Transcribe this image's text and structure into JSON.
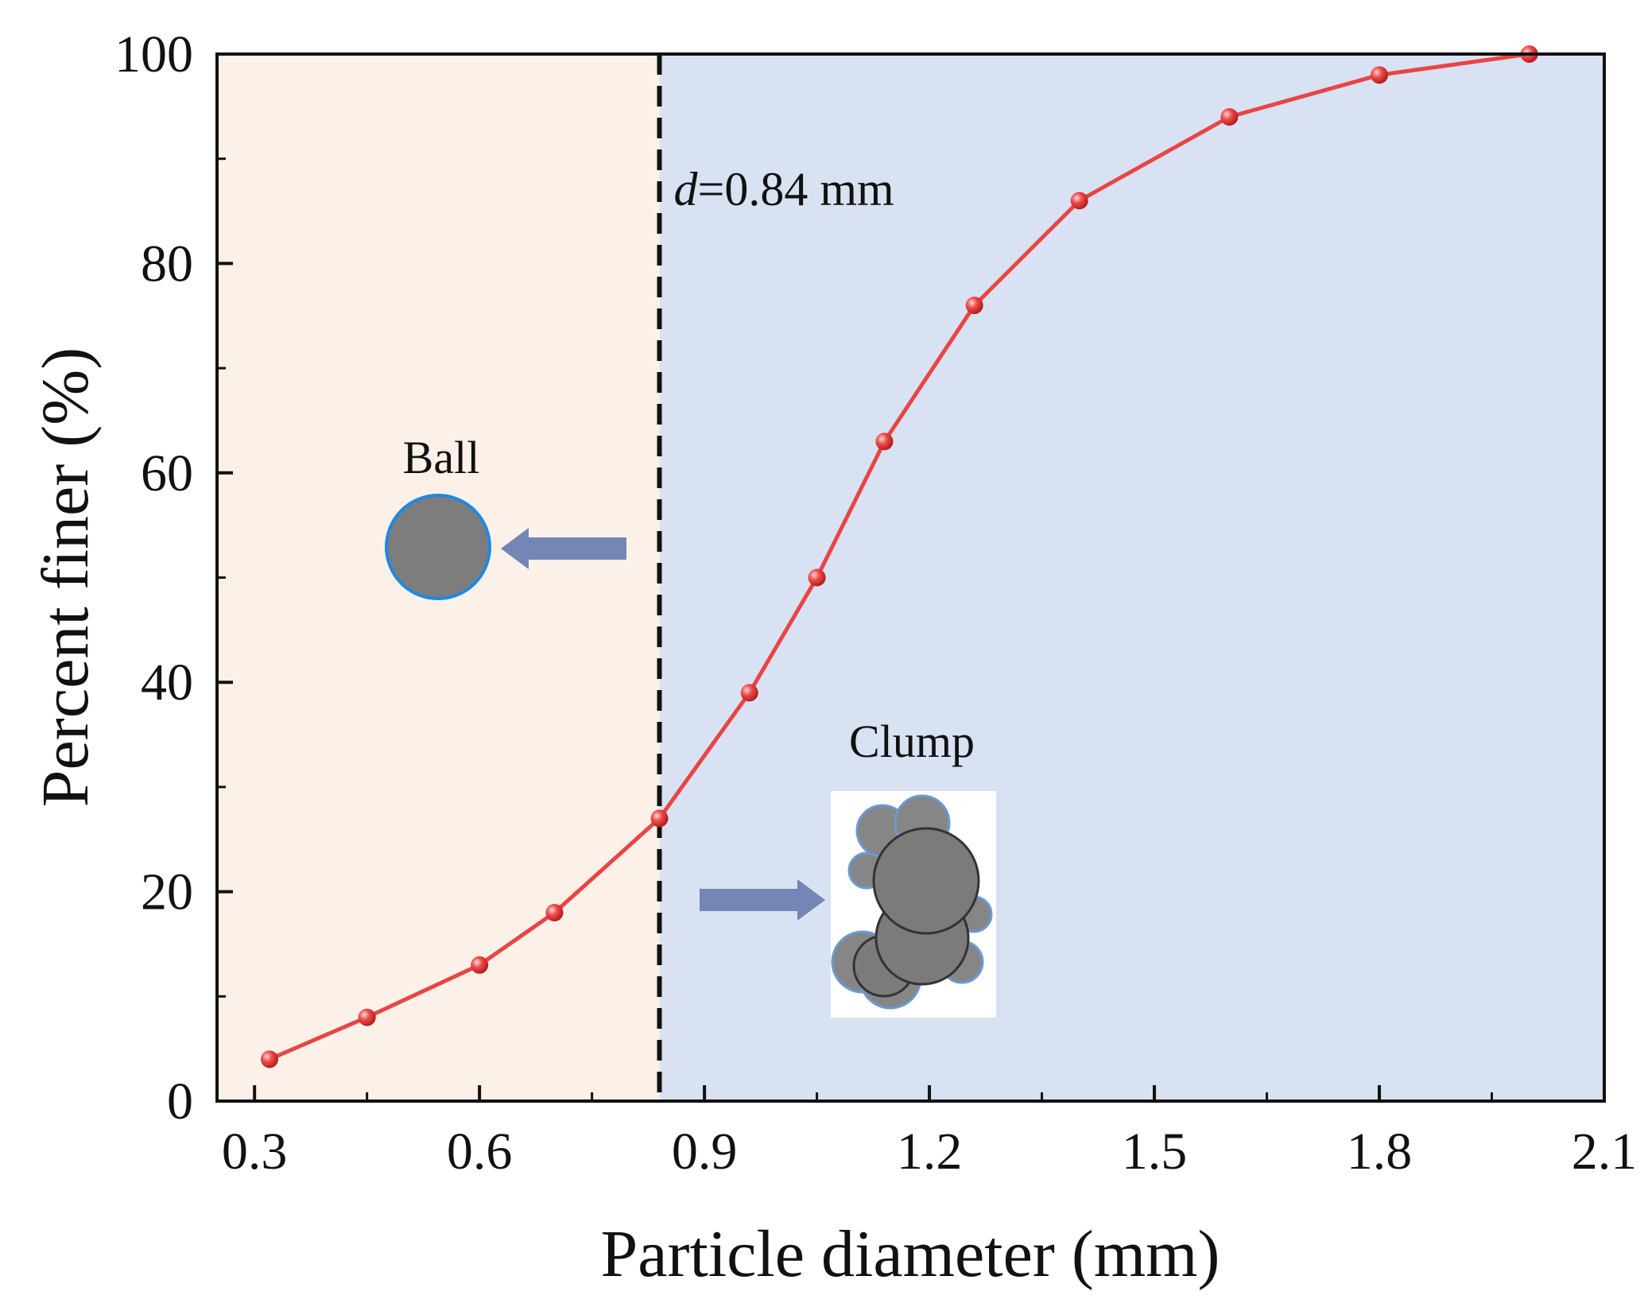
{
  "chart_data": {
    "type": "line",
    "xlabel": "Particle diameter (mm)",
    "ylabel": "Percent finer (%)",
    "xlim": [
      0.25,
      2.1
    ],
    "ylim": [
      0,
      100
    ],
    "x_ticks": [
      "0.3",
      "0.6",
      "0.9",
      "1.2",
      "1.5",
      "1.8",
      "2.1"
    ],
    "y_ticks": [
      "0",
      "20",
      "40",
      "60",
      "80",
      "100"
    ],
    "grid": false,
    "series": [
      {
        "name": "Percent finer",
        "x": [
          0.32,
          0.45,
          0.6,
          0.7,
          0.84,
          0.96,
          1.05,
          1.14,
          1.26,
          1.4,
          1.6,
          1.8,
          2.0
        ],
        "y": [
          4,
          8,
          13,
          18,
          27,
          39,
          50,
          63,
          76,
          86,
          94,
          98,
          100
        ],
        "color": "#e84545"
      }
    ],
    "threshold": {
      "x": 0.84,
      "label_var": "d",
      "label_value": "=0.84 mm"
    },
    "regions": {
      "left_color": "#fbf1e8",
      "right_color": "#d9e2f2"
    },
    "annotations": {
      "ball_label": "Ball",
      "clump_label": "Clump"
    }
  }
}
